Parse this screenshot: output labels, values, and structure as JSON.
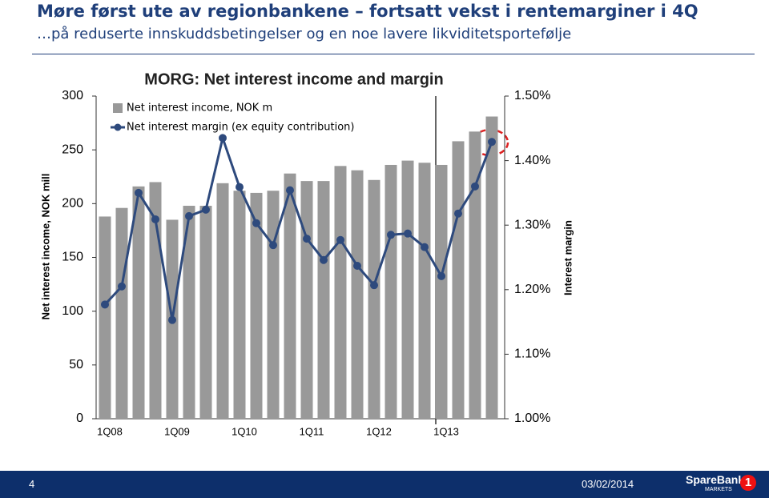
{
  "header": {
    "title": "Møre først ute av regionbankene – fortsatt vekst i rentemarginer i 4Q",
    "subtitle": "…på reduserte innskuddsbetingelser og en noe lavere likviditetsportefølje"
  },
  "chart_data": {
    "type": "bar",
    "title": "MORG: Net interest income and margin",
    "categories": [
      "1Q08",
      null,
      null,
      null,
      "1Q09",
      null,
      null,
      null,
      "1Q10",
      null,
      null,
      null,
      "1Q11",
      null,
      null,
      null,
      "1Q12",
      null,
      null,
      null,
      "1Q13",
      null,
      null,
      null
    ],
    "series": [
      {
        "name": "Net interest income, NOK m",
        "type": "bar",
        "color": "#999999",
        "values": [
          188,
          196,
          216,
          220,
          185,
          198,
          198,
          219,
          212,
          210,
          212,
          228,
          221,
          221,
          235,
          231,
          222,
          236,
          240,
          238,
          236,
          258,
          267,
          281
        ]
      },
      {
        "name": "Net interest margin (ex equity contribution)",
        "type": "line",
        "axis": "y2",
        "color": "#2e4a7d",
        "values": [
          1.177,
          1.205,
          1.35,
          1.309,
          1.153,
          1.314,
          1.324,
          1.435,
          1.359,
          1.303,
          1.269,
          1.354,
          1.279,
          1.246,
          1.277,
          1.237,
          1.207,
          1.285,
          1.287,
          1.266,
          1.221,
          1.318,
          1.36,
          1.429
        ]
      }
    ],
    "ylabel": "Net interest income, NOK mill",
    "y2label": "Interest margin",
    "ylim": [
      0,
      300
    ],
    "yticks": [
      0,
      50,
      100,
      150,
      200,
      250,
      300
    ],
    "y2lim": [
      1.0,
      1.5
    ],
    "y2ticks": [
      {
        "value": 1.0,
        "label": "1.00%"
      },
      {
        "value": 1.1,
        "label": "1.10%"
      },
      {
        "value": 1.2,
        "label": "1.20%"
      },
      {
        "value": 1.3,
        "label": "1.30%"
      },
      {
        "value": 1.4,
        "label": "1.40%"
      },
      {
        "value": 1.5,
        "label": "1.50%"
      }
    ],
    "grid": false
  },
  "footer": {
    "page": "4",
    "date": "03/02/2014",
    "logo": "SpareBank",
    "logo_sub": "MARKETS",
    "logo_num": "1"
  }
}
